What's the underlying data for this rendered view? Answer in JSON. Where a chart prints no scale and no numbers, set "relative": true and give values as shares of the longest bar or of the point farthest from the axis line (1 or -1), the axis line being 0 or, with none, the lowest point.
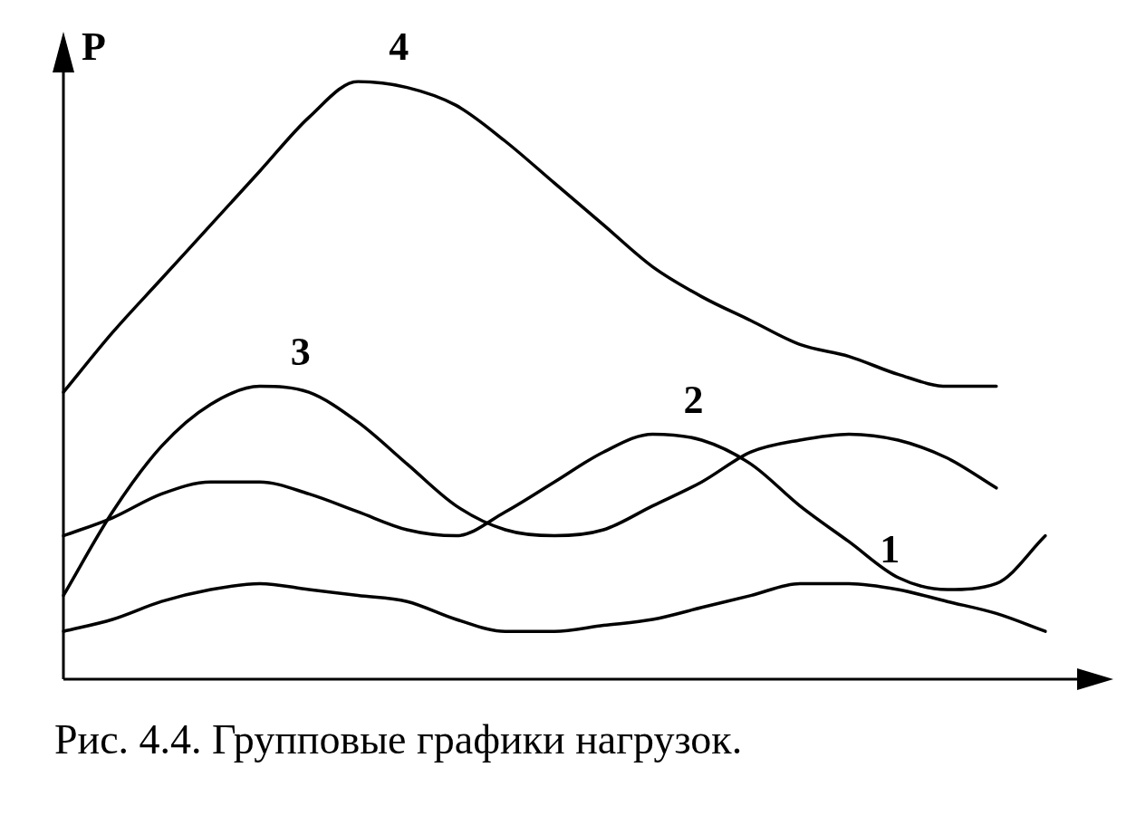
{
  "chart_data": {
    "type": "line",
    "relative": true,
    "ylabel": "P",
    "annotations": [
      "Рис. 4.4. Групповые графики нагрузок."
    ],
    "categories": [
      null,
      null,
      null,
      null,
      null,
      null,
      null,
      null,
      null,
      null,
      null,
      null,
      null,
      null,
      null,
      null,
      null,
      null,
      null,
      null,
      null
    ],
    "legend": false,
    "tick_labels": false,
    "marker": "none",
    "line_style": "solid",
    "series": [
      {
        "name": "1",
        "color": "#000000",
        "values": [
          0.08,
          0.1,
          0.13,
          0.15,
          0.16,
          0.15,
          0.14,
          0.13,
          0.1,
          0.08,
          0.08,
          0.09,
          0.1,
          0.12,
          0.14,
          0.16,
          0.16,
          0.15,
          0.13,
          0.11,
          0.08
        ]
      },
      {
        "name": "2",
        "color": "#000000",
        "values": [
          0.24,
          0.27,
          0.31,
          0.33,
          0.33,
          0.31,
          0.28,
          0.25,
          0.24,
          0.28,
          0.33,
          0.38,
          0.41,
          0.4,
          0.36,
          0.29,
          0.23,
          0.17,
          0.15,
          0.16,
          0.24
        ]
      },
      {
        "name": "3",
        "color": "#000000",
        "values": [
          0.14,
          0.28,
          0.39,
          0.46,
          0.49,
          0.48,
          0.43,
          0.36,
          0.29,
          0.25,
          0.24,
          0.25,
          0.29,
          0.33,
          0.38,
          0.4,
          0.41,
          0.4,
          0.37,
          0.32,
          null
        ]
      },
      {
        "name": "4",
        "color": "#000000",
        "values": [
          0.48,
          0.58,
          0.67,
          0.76,
          0.85,
          0.94,
          1.0,
          0.99,
          0.96,
          0.9,
          0.83,
          0.76,
          0.69,
          0.64,
          0.6,
          0.56,
          0.54,
          0.51,
          0.49,
          0.49,
          null
        ]
      }
    ]
  }
}
